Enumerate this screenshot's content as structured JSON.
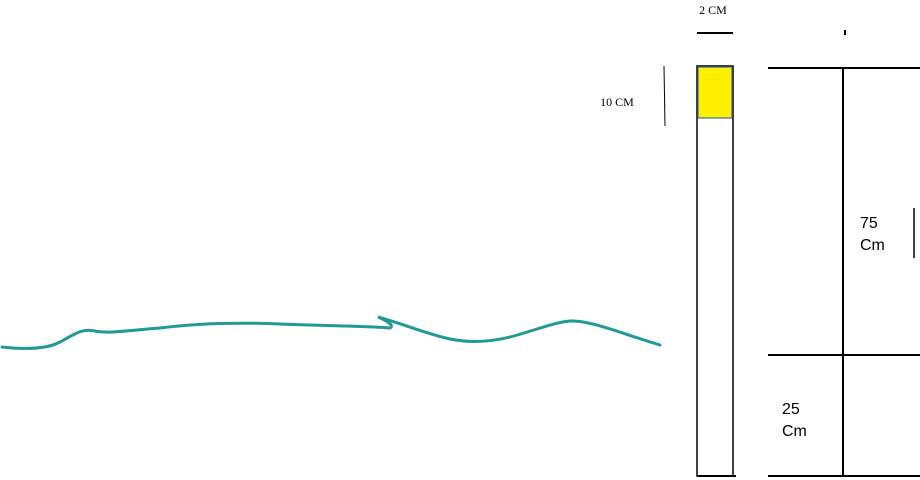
{
  "labels": {
    "width": "2 CM",
    "cap": "10 CM",
    "upper": [
      "75",
      "Cm"
    ],
    "lower": [
      "25",
      "Cm"
    ]
  }
}
